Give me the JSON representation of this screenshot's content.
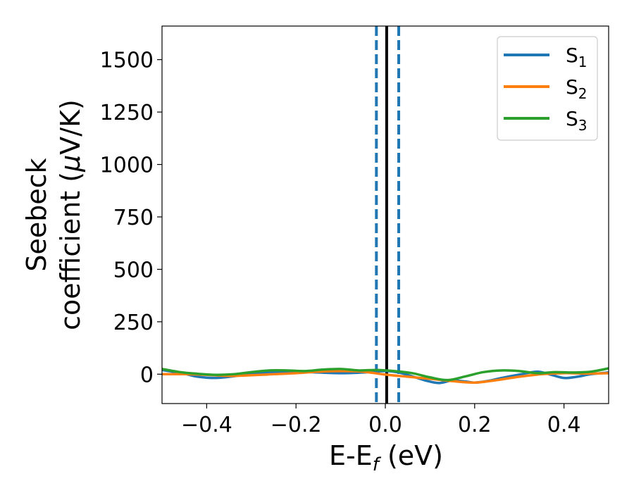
{
  "chart_data": {
    "type": "line",
    "xlabel": "E-E",
    "xlabel_sub": "f",
    "xlabel_unit": " (eV)",
    "ylabel_line1": "Seebeck",
    "ylabel_line2": "coefficient  (",
    "ylabel_mu": "μ",
    "ylabel_unit": "V/K)",
    "xlim": [
      -0.5,
      0.5
    ],
    "ylim": [
      -140,
      1660
    ],
    "xticks": [
      -0.4,
      -0.2,
      0.0,
      0.2,
      0.4
    ],
    "xtick_labels": [
      "−0.4",
      "−0.2",
      "0.0",
      "0.2",
      "0.4"
    ],
    "yticks": [
      0,
      250,
      500,
      750,
      1000,
      1250,
      1500
    ],
    "ytick_labels": [
      "0",
      "250",
      "500",
      "750",
      "1000",
      "1250",
      "1500"
    ],
    "grid": false,
    "legend_position": "top-right",
    "vertical_lines": [
      {
        "x": -0.02,
        "style": "dashed",
        "color": "#1f77b4"
      },
      {
        "x": 0.03,
        "style": "dashed",
        "color": "#1f77b4"
      },
      {
        "x": 0.003,
        "style": "solid",
        "color": "#000000"
      }
    ],
    "series": [
      {
        "name": "S",
        "sub": "1",
        "color": "#1f77b4",
        "x": [
          -0.5,
          -0.45,
          -0.42,
          -0.38,
          -0.34,
          -0.3,
          -0.25,
          -0.2,
          -0.15,
          -0.1,
          -0.05,
          0.0,
          0.03,
          0.06,
          0.09,
          0.12,
          0.15,
          0.18,
          0.2,
          0.23,
          0.26,
          0.3,
          0.34,
          0.37,
          0.4,
          0.43,
          0.46,
          0.5
        ],
        "y": [
          20,
          2,
          -12,
          -18,
          -10,
          2,
          10,
          12,
          8,
          5,
          8,
          15,
          8,
          -10,
          -30,
          -42,
          -30,
          -35,
          -40,
          -32,
          -18,
          -2,
          12,
          -2,
          -18,
          -12,
          0,
          8
        ]
      },
      {
        "name": "S",
        "sub": "2",
        "color": "#ff7f0e",
        "x": [
          -0.5,
          -0.45,
          -0.4,
          -0.35,
          -0.3,
          -0.25,
          -0.2,
          -0.15,
          -0.1,
          -0.05,
          0.0,
          0.05,
          0.1,
          0.15,
          0.2,
          0.25,
          0.3,
          0.35,
          0.4,
          0.45,
          0.5
        ],
        "y": [
          0,
          0,
          -3,
          -8,
          -5,
          0,
          5,
          12,
          15,
          12,
          -2,
          -12,
          -22,
          -33,
          -40,
          -28,
          -12,
          0,
          5,
          3,
          5
        ]
      },
      {
        "name": "S",
        "sub": "3",
        "color": "#2ca02c",
        "x": [
          -0.5,
          -0.46,
          -0.42,
          -0.38,
          -0.34,
          -0.3,
          -0.26,
          -0.22,
          -0.18,
          -0.14,
          -0.1,
          -0.06,
          -0.02,
          0.02,
          0.06,
          0.1,
          0.14,
          0.18,
          0.22,
          0.26,
          0.3,
          0.34,
          0.38,
          0.42,
          0.46,
          0.5
        ],
        "y": [
          25,
          10,
          2,
          -3,
          0,
          10,
          18,
          18,
          15,
          22,
          25,
          18,
          20,
          15,
          5,
          -15,
          -28,
          -10,
          10,
          18,
          15,
          5,
          10,
          8,
          12,
          28
        ]
      }
    ]
  }
}
